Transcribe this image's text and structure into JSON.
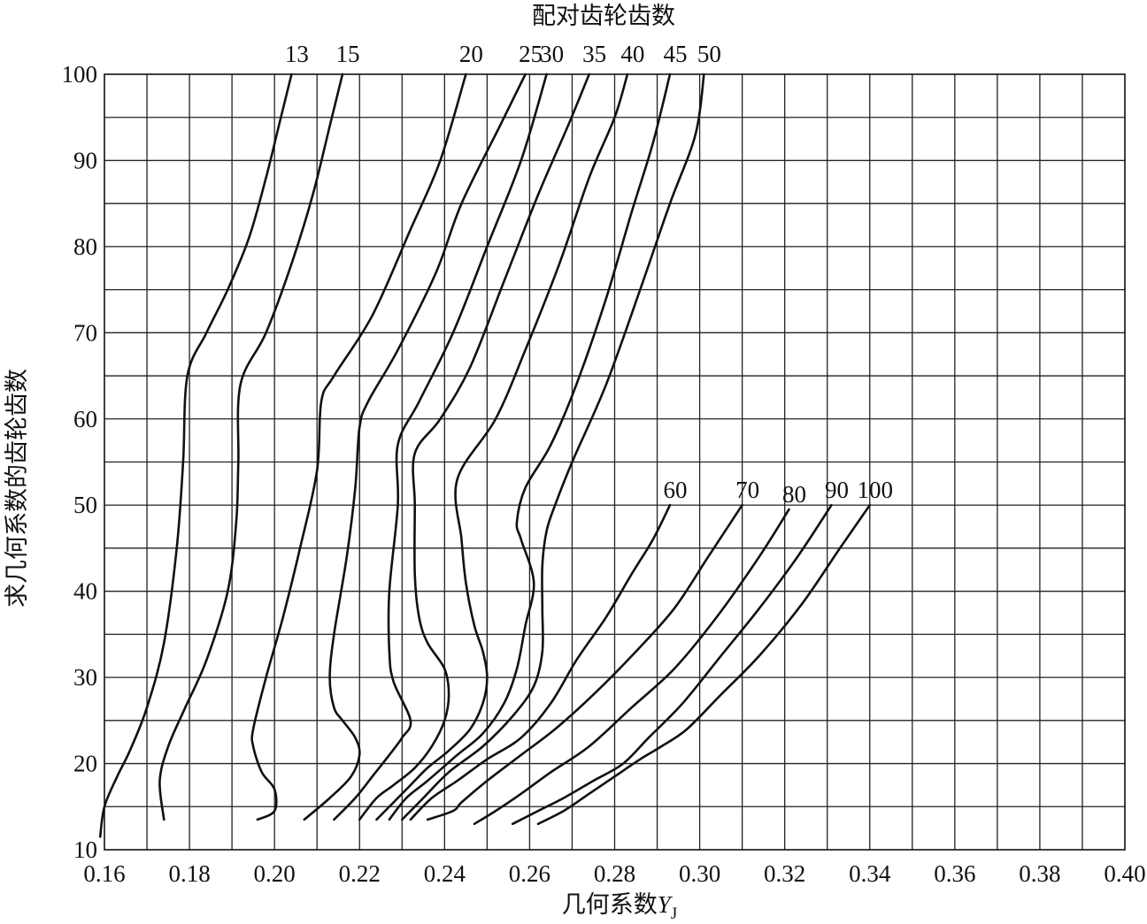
{
  "chart_data": {
    "type": "line",
    "title": "配对齿轮齿数",
    "xlabel": "几何系数",
    "xlabel_symbol": "Y",
    "xlabel_sub": "J",
    "ylabel": "求几何系数的齿轮齿数",
    "xlim": [
      0.16,
      0.4
    ],
    "ylim": [
      10,
      100
    ],
    "x_ticks": [
      "0.16",
      "0.18",
      "0.20",
      "0.22",
      "0.24",
      "0.26",
      "0.28",
      "0.30",
      "0.32",
      "0.34",
      "0.36",
      "0.38",
      "0.40"
    ],
    "y_ticks": [
      "10",
      "20",
      "30",
      "40",
      "50",
      "60",
      "70",
      "80",
      "90",
      "100"
    ],
    "grid": true,
    "x_grid_step": 0.01,
    "y_grid_step": 5,
    "series": [
      {
        "name": "13",
        "points": [
          [
            0.159,
            11.5
          ],
          [
            0.16,
            15
          ],
          [
            0.163,
            18.5
          ],
          [
            0.166,
            21.5
          ],
          [
            0.17,
            26.5
          ],
          [
            0.174,
            34
          ],
          [
            0.177,
            45
          ],
          [
            0.1785,
            55
          ],
          [
            0.1795,
            65
          ],
          [
            0.184,
            70
          ],
          [
            0.189,
            75
          ],
          [
            0.194,
            81
          ],
          [
            0.198,
            88
          ],
          [
            0.201,
            94
          ],
          [
            0.204,
            100
          ]
        ]
      },
      {
        "name": "15",
        "points": [
          [
            0.174,
            13.5
          ],
          [
            0.173,
            18
          ],
          [
            0.175,
            22
          ],
          [
            0.179,
            26.5
          ],
          [
            0.184,
            32
          ],
          [
            0.189,
            40
          ],
          [
            0.191,
            48
          ],
          [
            0.1915,
            55
          ],
          [
            0.192,
            64
          ],
          [
            0.198,
            70
          ],
          [
            0.204,
            78
          ],
          [
            0.209,
            86
          ],
          [
            0.213,
            94
          ],
          [
            0.216,
            100
          ]
        ]
      },
      {
        "name": "20",
        "points": [
          [
            0.196,
            13.5
          ],
          [
            0.2,
            14.5
          ],
          [
            0.2,
            17
          ],
          [
            0.197,
            19
          ],
          [
            0.195,
            22
          ],
          [
            0.195,
            24
          ],
          [
            0.198,
            30
          ],
          [
            0.202,
            37
          ],
          [
            0.206,
            45
          ],
          [
            0.21,
            54
          ],
          [
            0.211,
            62
          ],
          [
            0.214,
            65
          ],
          [
            0.223,
            72
          ],
          [
            0.232,
            82
          ],
          [
            0.239,
            90
          ],
          [
            0.245,
            100
          ]
        ]
      },
      {
        "name": "25",
        "points": [
          [
            0.207,
            13.5
          ],
          [
            0.213,
            16
          ],
          [
            0.218,
            18.5
          ],
          [
            0.22,
            21
          ],
          [
            0.219,
            23
          ],
          [
            0.216,
            25
          ],
          [
            0.214,
            26.5
          ],
          [
            0.213,
            30
          ],
          [
            0.214,
            35
          ],
          [
            0.217,
            44
          ],
          [
            0.219,
            52
          ],
          [
            0.22,
            59
          ],
          [
            0.222,
            62
          ],
          [
            0.229,
            68
          ],
          [
            0.238,
            77
          ],
          [
            0.244,
            85
          ],
          [
            0.253,
            94
          ],
          [
            0.259,
            100
          ]
        ]
      },
      {
        "name": "30",
        "points": [
          [
            0.214,
            13.5
          ],
          [
            0.219,
            16
          ],
          [
            0.223,
            18.5
          ],
          [
            0.227,
            21
          ],
          [
            0.23,
            23
          ],
          [
            0.232,
            25
          ],
          [
            0.228,
            29.5
          ],
          [
            0.227,
            33
          ],
          [
            0.227,
            40
          ],
          [
            0.229,
            50
          ],
          [
            0.229,
            57
          ],
          [
            0.234,
            62
          ],
          [
            0.242,
            70
          ],
          [
            0.25,
            80
          ],
          [
            0.258,
            90
          ],
          [
            0.264,
            100
          ]
        ]
      },
      {
        "name": "35",
        "points": [
          [
            0.22,
            13.5
          ],
          [
            0.224,
            16
          ],
          [
            0.228,
            17.5
          ],
          [
            0.233,
            19.5
          ],
          [
            0.237,
            22
          ],
          [
            0.24,
            25
          ],
          [
            0.241,
            28
          ],
          [
            0.24,
            31
          ],
          [
            0.236,
            34
          ],
          [
            0.234,
            37
          ],
          [
            0.233,
            42
          ],
          [
            0.233,
            50
          ],
          [
            0.233,
            56
          ],
          [
            0.239,
            60
          ],
          [
            0.246,
            66
          ],
          [
            0.254,
            76
          ],
          [
            0.262,
            86
          ],
          [
            0.269,
            94
          ],
          [
            0.274,
            100
          ]
        ]
      },
      {
        "name": "40",
        "points": [
          [
            0.224,
            13.5
          ],
          [
            0.228,
            15.5
          ],
          [
            0.232,
            17.5
          ],
          [
            0.236,
            19.5
          ],
          [
            0.241,
            21.5
          ],
          [
            0.246,
            24
          ],
          [
            0.249,
            27
          ],
          [
            0.25,
            30
          ],
          [
            0.249,
            33
          ],
          [
            0.247,
            36
          ],
          [
            0.245,
            41
          ],
          [
            0.244,
            46
          ],
          [
            0.243,
            53
          ],
          [
            0.252,
            60
          ],
          [
            0.259,
            68
          ],
          [
            0.267,
            78
          ],
          [
            0.274,
            88
          ],
          [
            0.28,
            95
          ],
          [
            0.283,
            100
          ]
        ]
      },
      {
        "name": "45",
        "points": [
          [
            0.227,
            13.5
          ],
          [
            0.231,
            16
          ],
          [
            0.236,
            18
          ],
          [
            0.243,
            21
          ],
          [
            0.249,
            23.5
          ],
          [
            0.254,
            27
          ],
          [
            0.257,
            31
          ],
          [
            0.259,
            36
          ],
          [
            0.261,
            41
          ],
          [
            0.258,
            46
          ],
          [
            0.257,
            48
          ],
          [
            0.259,
            52
          ],
          [
            0.265,
            57
          ],
          [
            0.271,
            64
          ],
          [
            0.278,
            74
          ],
          [
            0.284,
            84
          ],
          [
            0.289,
            92
          ],
          [
            0.293,
            100
          ]
        ]
      },
      {
        "name": "50",
        "points": [
          [
            0.23,
            13.5
          ],
          [
            0.235,
            16
          ],
          [
            0.241,
            19
          ],
          [
            0.249,
            22
          ],
          [
            0.256,
            25.5
          ],
          [
            0.261,
            29
          ],
          [
            0.263,
            33
          ],
          [
            0.263,
            38
          ],
          [
            0.263,
            43
          ],
          [
            0.264,
            47
          ],
          [
            0.266,
            50
          ],
          [
            0.27,
            55
          ],
          [
            0.278,
            64
          ],
          [
            0.286,
            75
          ],
          [
            0.293,
            85
          ],
          [
            0.299,
            93
          ],
          [
            0.301,
            100
          ]
        ]
      },
      {
        "name": "60",
        "points": [
          [
            0.232,
            13.5
          ],
          [
            0.237,
            16
          ],
          [
            0.243,
            18
          ],
          [
            0.25,
            20.5
          ],
          [
            0.258,
            23
          ],
          [
            0.265,
            27
          ],
          [
            0.271,
            32
          ],
          [
            0.278,
            37
          ],
          [
            0.284,
            42
          ],
          [
            0.289,
            46
          ],
          [
            0.293,
            50
          ]
        ]
      },
      {
        "name": "70",
        "points": [
          [
            0.236,
            13.5
          ],
          [
            0.242,
            14.5
          ],
          [
            0.244,
            15.5
          ],
          [
            0.25,
            18
          ],
          [
            0.258,
            21
          ],
          [
            0.266,
            24
          ],
          [
            0.275,
            28
          ],
          [
            0.285,
            33
          ],
          [
            0.294,
            38
          ],
          [
            0.302,
            44
          ],
          [
            0.31,
            50
          ]
        ]
      },
      {
        "name": "80",
        "points": [
          [
            0.247,
            13
          ],
          [
            0.252,
            14.5
          ],
          [
            0.258,
            16.5
          ],
          [
            0.265,
            19
          ],
          [
            0.274,
            22
          ],
          [
            0.284,
            26.5
          ],
          [
            0.294,
            31
          ],
          [
            0.304,
            37
          ],
          [
            0.314,
            44
          ],
          [
            0.321,
            49.5
          ]
        ]
      },
      {
        "name": "90",
        "points": [
          [
            0.256,
            13
          ],
          [
            0.262,
            14.5
          ],
          [
            0.268,
            16
          ],
          [
            0.275,
            18
          ],
          [
            0.282,
            20
          ],
          [
            0.288,
            23
          ],
          [
            0.296,
            27
          ],
          [
            0.305,
            32.5
          ],
          [
            0.314,
            38
          ],
          [
            0.323,
            44
          ],
          [
            0.331,
            50
          ]
        ]
      },
      {
        "name": "100",
        "points": [
          [
            0.262,
            13
          ],
          [
            0.268,
            14.5
          ],
          [
            0.274,
            16.5
          ],
          [
            0.28,
            18.5
          ],
          [
            0.286,
            20.5
          ],
          [
            0.291,
            22
          ],
          [
            0.297,
            24
          ],
          [
            0.305,
            28
          ],
          [
            0.314,
            32.5
          ],
          [
            0.324,
            38.5
          ],
          [
            0.333,
            45
          ],
          [
            0.34,
            50
          ]
        ]
      }
    ]
  }
}
